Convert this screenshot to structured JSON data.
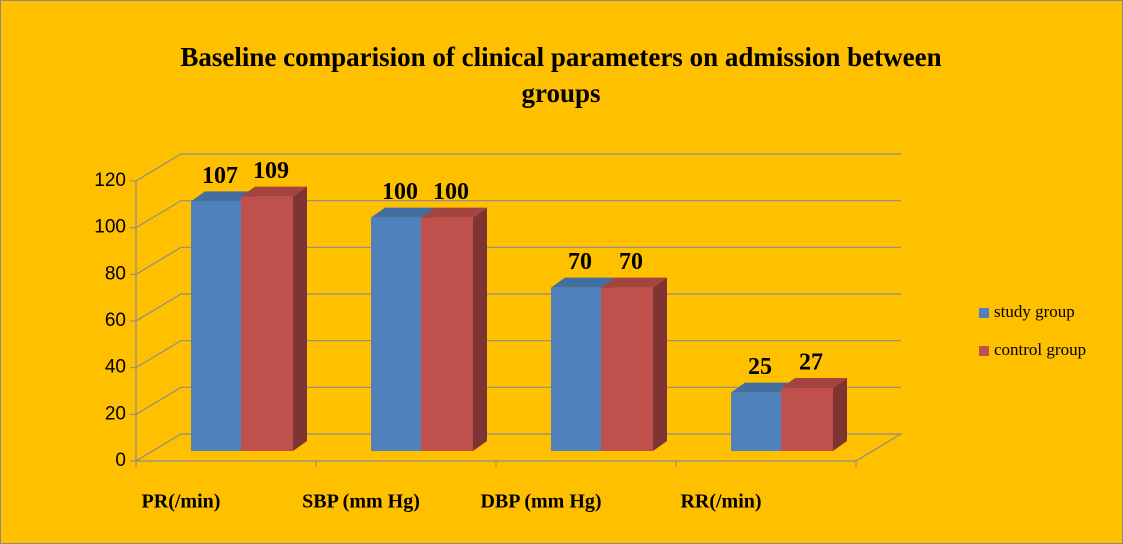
{
  "chart_data": {
    "type": "bar3d",
    "title": "Baseline comparision of clinical parameters on admission between groups",
    "categories": [
      "PR(/min)",
      "SBP (mm Hg)",
      "DBP (mm Hg)",
      "RR(/min)"
    ],
    "series": [
      {
        "name": "study group",
        "color": "#4F81BD",
        "values": [
          107,
          100,
          70,
          25
        ]
      },
      {
        "name": "control group",
        "color": "#C0504D",
        "values": [
          109,
          100,
          70,
          27
        ]
      }
    ],
    "ylim": [
      0,
      120
    ],
    "yticks": [
      0,
      20,
      40,
      60,
      80,
      100,
      120
    ],
    "grid": true,
    "legend": "right"
  }
}
